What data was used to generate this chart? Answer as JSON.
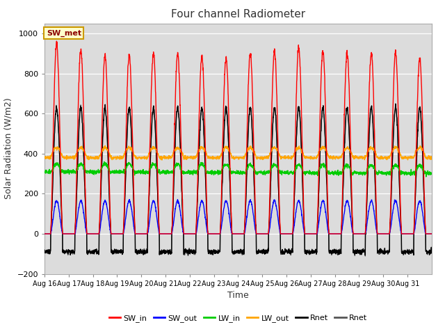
{
  "title": "Four channel Radiometer",
  "xlabel": "Time",
  "ylabel": "Solar Radiation (W/m2)",
  "ylim": [
    -200,
    1050
  ],
  "background_color": "#dcdcdc",
  "legend_entries": [
    "SW_in",
    "SW_out",
    "LW_in",
    "LW_out",
    "Rnet",
    "Rnet"
  ],
  "legend_colors": [
    "#ff0000",
    "#0000ff",
    "#00cc00",
    "#ffa500",
    "#000000",
    "#555555"
  ],
  "num_days": 16,
  "n_per_day": 144,
  "tick_labels": [
    "Aug 16",
    "Aug 17",
    "Aug 18",
    "Aug 19",
    "Aug 20",
    "Aug 21",
    "Aug 22",
    "Aug 23",
    "Aug 24",
    "Aug 25",
    "Aug 26",
    "Aug 27",
    "Aug 28",
    "Aug 29",
    "Aug 30",
    "Aug 31"
  ],
  "sw_in_peaks": [
    950,
    920,
    890,
    890,
    900,
    895,
    885,
    875,
    905,
    910,
    930,
    915,
    900,
    900,
    905,
    870
  ],
  "sw_out_peak": 165,
  "lw_in_base": 310,
  "lw_in_bump": 40,
  "lw_out_base": 380,
  "lw_out_bump": 50,
  "rnet_day_peak": 630,
  "rnet_night": -90,
  "sw_met_label": "SW_met"
}
